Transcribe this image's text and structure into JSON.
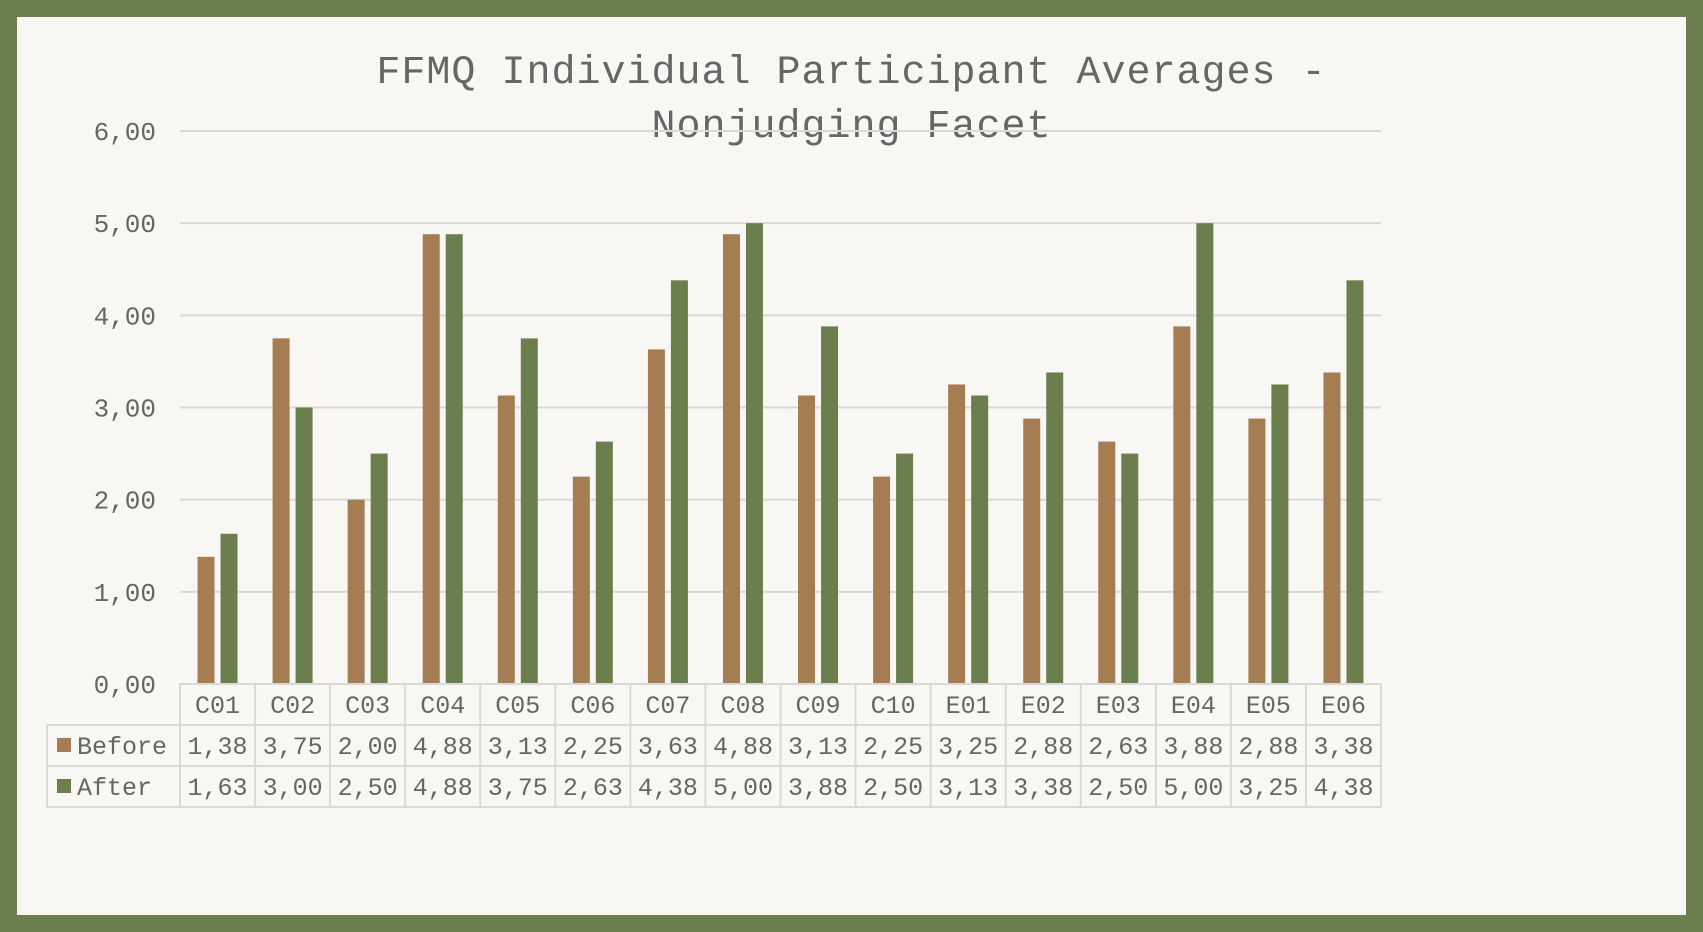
{
  "chart_data": {
    "type": "bar",
    "title": "FFMQ Individual Participant Averages - Nonjudging Facet",
    "title_lines": [
      "FFMQ Individual Participant Averages -",
      "Nonjudging Facet"
    ],
    "categories": [
      "C01",
      "C02",
      "C03",
      "C04",
      "C05",
      "C06",
      "C07",
      "C08",
      "C09",
      "C10",
      "E01",
      "E02",
      "E03",
      "E04",
      "E05",
      "E06"
    ],
    "series": [
      {
        "name": "Before",
        "color": "#a67c52",
        "values": [
          1.38,
          3.75,
          2.0,
          4.88,
          3.13,
          2.25,
          3.63,
          4.88,
          3.13,
          2.25,
          3.25,
          2.88,
          2.63,
          3.88,
          2.88,
          3.38
        ],
        "labels": [
          "1,38",
          "3,75",
          "2,00",
          "4,88",
          "3,13",
          "2,25",
          "3,63",
          "4,88",
          "3,13",
          "2,25",
          "3,25",
          "2,88",
          "2,63",
          "3,88",
          "2,88",
          "3,38"
        ]
      },
      {
        "name": "After",
        "color": "#6b7f4e",
        "values": [
          1.63,
          3.0,
          2.5,
          4.88,
          3.75,
          2.63,
          4.38,
          5.0,
          3.88,
          2.5,
          3.13,
          3.38,
          2.5,
          5.0,
          3.25,
          4.38
        ],
        "labels": [
          "1,63",
          "3,00",
          "2,50",
          "4,88",
          "3,75",
          "2,63",
          "4,38",
          "5,00",
          "3,88",
          "2,50",
          "3,13",
          "3,38",
          "2,50",
          "5,00",
          "3,25",
          "4,38"
        ]
      }
    ],
    "yticks": [
      0,
      1,
      2,
      3,
      4,
      5,
      6
    ],
    "ytick_labels": [
      "0,00",
      "1,00",
      "2,00",
      "3,00",
      "4,00",
      "5,00",
      "6,00"
    ],
    "ylim": [
      0,
      6
    ],
    "grid": true,
    "legend": "data-table",
    "xlabel": "",
    "ylabel": ""
  }
}
